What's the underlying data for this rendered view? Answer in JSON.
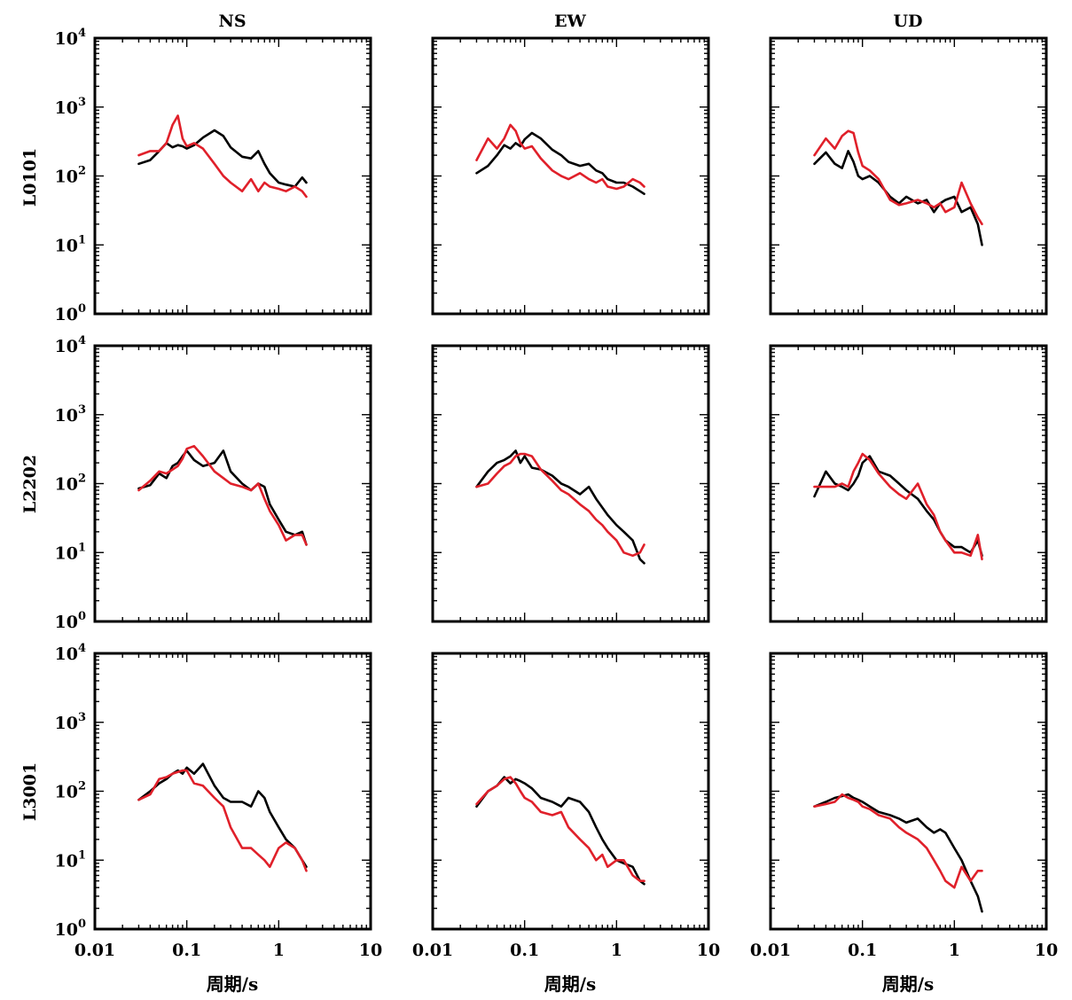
{
  "figure": {
    "column_titles": [
      "NS",
      "EW",
      "UD"
    ],
    "row_labels": [
      "L0101",
      "L2202",
      "L3001"
    ],
    "x_label": "周期/s",
    "x_ticks": [
      "0.01",
      "0.1",
      "1",
      "10"
    ],
    "y_ticks": [
      {
        "base": "10",
        "exp": "0"
      },
      {
        "base": "10",
        "exp": "1"
      },
      {
        "base": "10",
        "exp": "2"
      },
      {
        "base": "10",
        "exp": "3"
      },
      {
        "base": "10",
        "exp": "4"
      }
    ],
    "series_colors": {
      "black": "#000000",
      "red": "#e0202a"
    }
  },
  "chart_data": [
    {
      "type": "line",
      "row": "L0101",
      "column": "NS",
      "x_scale": "log",
      "y_scale": "log",
      "xlim": [
        0.01,
        10
      ],
      "ylim": [
        1,
        10000
      ],
      "x": [
        0.03,
        0.04,
        0.05,
        0.06,
        0.07,
        0.08,
        0.09,
        0.1,
        0.12,
        0.15,
        0.2,
        0.25,
        0.3,
        0.4,
        0.5,
        0.6,
        0.7,
        0.8,
        1.0,
        1.2,
        1.5,
        1.8,
        2.0
      ],
      "series": [
        {
          "color": "black",
          "values": [
            150,
            170,
            230,
            300,
            260,
            280,
            270,
            250,
            280,
            360,
            460,
            380,
            260,
            190,
            180,
            230,
            150,
            110,
            80,
            75,
            70,
            95,
            80
          ]
        },
        {
          "color": "red",
          "values": [
            200,
            230,
            230,
            300,
            550,
            750,
            350,
            270,
            300,
            250,
            150,
            100,
            80,
            60,
            90,
            60,
            80,
            70,
            65,
            60,
            70,
            60,
            50
          ]
        }
      ]
    },
    {
      "type": "line",
      "row": "L0101",
      "column": "EW",
      "x_scale": "log",
      "y_scale": "log",
      "xlim": [
        0.01,
        10
      ],
      "ylim": [
        1,
        10000
      ],
      "x": [
        0.03,
        0.04,
        0.05,
        0.06,
        0.07,
        0.08,
        0.09,
        0.1,
        0.12,
        0.15,
        0.2,
        0.25,
        0.3,
        0.4,
        0.5,
        0.6,
        0.7,
        0.8,
        1.0,
        1.2,
        1.5,
        1.8,
        2.0
      ],
      "series": [
        {
          "color": "black",
          "values": [
            110,
            140,
            200,
            280,
            250,
            300,
            270,
            340,
            420,
            350,
            240,
            200,
            160,
            140,
            150,
            120,
            110,
            90,
            80,
            80,
            70,
            60,
            55
          ]
        },
        {
          "color": "red",
          "values": [
            170,
            350,
            250,
            350,
            550,
            450,
            300,
            250,
            270,
            180,
            120,
            100,
            90,
            110,
            90,
            80,
            90,
            70,
            65,
            70,
            90,
            80,
            70
          ]
        }
      ]
    },
    {
      "type": "line",
      "row": "L0101",
      "column": "UD",
      "x_scale": "log",
      "y_scale": "log",
      "xlim": [
        0.01,
        10
      ],
      "ylim": [
        1,
        10000
      ],
      "x": [
        0.03,
        0.04,
        0.05,
        0.06,
        0.07,
        0.08,
        0.09,
        0.1,
        0.12,
        0.15,
        0.2,
        0.25,
        0.3,
        0.4,
        0.5,
        0.6,
        0.7,
        0.8,
        1.0,
        1.2,
        1.5,
        1.8,
        2.0
      ],
      "series": [
        {
          "color": "black",
          "values": [
            150,
            220,
            150,
            130,
            230,
            160,
            100,
            90,
            100,
            80,
            50,
            40,
            50,
            40,
            45,
            30,
            40,
            45,
            50,
            30,
            35,
            20,
            10
          ]
        },
        {
          "color": "red",
          "values": [
            200,
            350,
            250,
            380,
            450,
            420,
            220,
            140,
            120,
            90,
            45,
            38,
            40,
            45,
            40,
            35,
            40,
            30,
            35,
            80,
            40,
            25,
            20
          ]
        }
      ]
    },
    {
      "type": "line",
      "row": "L2202",
      "column": "NS",
      "x_scale": "log",
      "y_scale": "log",
      "xlim": [
        0.01,
        10
      ],
      "ylim": [
        1,
        10000
      ],
      "x": [
        0.03,
        0.04,
        0.05,
        0.06,
        0.07,
        0.08,
        0.09,
        0.1,
        0.12,
        0.15,
        0.2,
        0.25,
        0.3,
        0.4,
        0.5,
        0.6,
        0.7,
        0.8,
        1.0,
        1.2,
        1.5,
        1.8,
        2.0
      ],
      "series": [
        {
          "color": "black",
          "values": [
            85,
            95,
            140,
            120,
            180,
            200,
            250,
            300,
            220,
            180,
            200,
            300,
            150,
            100,
            80,
            100,
            90,
            50,
            30,
            20,
            18,
            20,
            13
          ]
        },
        {
          "color": "red",
          "values": [
            80,
            110,
            150,
            140,
            160,
            180,
            230,
            320,
            350,
            250,
            150,
            120,
            100,
            90,
            80,
            100,
            60,
            40,
            25,
            15,
            18,
            18,
            13
          ]
        }
      ]
    },
    {
      "type": "line",
      "row": "L2202",
      "column": "EW",
      "x_scale": "log",
      "y_scale": "log",
      "xlim": [
        0.01,
        10
      ],
      "ylim": [
        1,
        10000
      ],
      "x": [
        0.03,
        0.04,
        0.05,
        0.06,
        0.07,
        0.08,
        0.09,
        0.1,
        0.12,
        0.15,
        0.2,
        0.25,
        0.3,
        0.4,
        0.5,
        0.6,
        0.7,
        0.8,
        1.0,
        1.2,
        1.5,
        1.8,
        2.0
      ],
      "series": [
        {
          "color": "black",
          "values": [
            90,
            150,
            200,
            220,
            250,
            300,
            200,
            250,
            170,
            160,
            130,
            100,
            90,
            70,
            90,
            60,
            45,
            35,
            25,
            20,
            15,
            8,
            7
          ]
        },
        {
          "color": "red",
          "values": [
            90,
            100,
            140,
            180,
            200,
            250,
            270,
            270,
            250,
            160,
            110,
            80,
            70,
            50,
            40,
            30,
            25,
            20,
            15,
            10,
            9,
            10,
            13
          ]
        }
      ]
    },
    {
      "type": "line",
      "row": "L2202",
      "column": "UD",
      "x_scale": "log",
      "y_scale": "log",
      "xlim": [
        0.01,
        10
      ],
      "ylim": [
        1,
        10000
      ],
      "x": [
        0.03,
        0.04,
        0.05,
        0.06,
        0.07,
        0.08,
        0.09,
        0.1,
        0.12,
        0.15,
        0.2,
        0.25,
        0.3,
        0.4,
        0.5,
        0.6,
        0.7,
        0.8,
        1.0,
        1.2,
        1.5,
        1.8,
        2.0
      ],
      "series": [
        {
          "color": "black",
          "values": [
            65,
            150,
            100,
            90,
            80,
            100,
            130,
            200,
            250,
            150,
            130,
            100,
            80,
            60,
            40,
            30,
            20,
            15,
            12,
            12,
            10,
            15,
            9
          ]
        },
        {
          "color": "red",
          "values": [
            90,
            90,
            90,
            100,
            90,
            150,
            200,
            270,
            220,
            140,
            90,
            70,
            60,
            100,
            50,
            35,
            20,
            15,
            10,
            10,
            9,
            18,
            8
          ]
        }
      ]
    },
    {
      "type": "line",
      "row": "L3001",
      "column": "NS",
      "x_scale": "log",
      "y_scale": "log",
      "xlim": [
        0.01,
        10
      ],
      "ylim": [
        1,
        10000
      ],
      "x": [
        0.03,
        0.04,
        0.05,
        0.06,
        0.07,
        0.08,
        0.09,
        0.1,
        0.12,
        0.15,
        0.2,
        0.25,
        0.3,
        0.4,
        0.5,
        0.6,
        0.7,
        0.8,
        1.0,
        1.2,
        1.5,
        1.8,
        2.0
      ],
      "series": [
        {
          "color": "black",
          "values": [
            75,
            100,
            130,
            150,
            180,
            200,
            180,
            220,
            180,
            250,
            120,
            80,
            70,
            70,
            60,
            100,
            80,
            50,
            30,
            20,
            15,
            10,
            8
          ]
        },
        {
          "color": "red",
          "values": [
            75,
            90,
            150,
            160,
            180,
            190,
            200,
            200,
            130,
            120,
            80,
            60,
            30,
            15,
            15,
            12,
            10,
            8,
            15,
            18,
            15,
            10,
            7
          ]
        }
      ]
    },
    {
      "type": "line",
      "row": "L3001",
      "column": "EW",
      "x_scale": "log",
      "y_scale": "log",
      "xlim": [
        0.01,
        10
      ],
      "ylim": [
        1,
        10000
      ],
      "x": [
        0.03,
        0.04,
        0.05,
        0.06,
        0.07,
        0.08,
        0.09,
        0.1,
        0.12,
        0.15,
        0.2,
        0.25,
        0.3,
        0.4,
        0.5,
        0.6,
        0.7,
        0.8,
        1.0,
        1.2,
        1.5,
        1.8,
        2.0
      ],
      "series": [
        {
          "color": "black",
          "values": [
            60,
            100,
            120,
            160,
            130,
            150,
            140,
            130,
            110,
            80,
            70,
            60,
            80,
            70,
            50,
            30,
            20,
            15,
            10,
            9,
            8,
            5,
            4.5
          ]
        },
        {
          "color": "red",
          "values": [
            65,
            100,
            120,
            150,
            160,
            130,
            100,
            80,
            70,
            50,
            45,
            50,
            30,
            20,
            15,
            10,
            12,
            8,
            10,
            10,
            6,
            5,
            5
          ]
        }
      ]
    },
    {
      "type": "line",
      "row": "L3001",
      "column": "UD",
      "x_scale": "log",
      "y_scale": "log",
      "xlim": [
        0.01,
        10
      ],
      "ylim": [
        1,
        10000
      ],
      "x": [
        0.03,
        0.04,
        0.05,
        0.06,
        0.07,
        0.08,
        0.09,
        0.1,
        0.12,
        0.15,
        0.2,
        0.25,
        0.3,
        0.4,
        0.5,
        0.6,
        0.7,
        0.8,
        1.0,
        1.2,
        1.5,
        1.8,
        2.0
      ],
      "series": [
        {
          "color": "black",
          "values": [
            60,
            70,
            80,
            85,
            90,
            80,
            75,
            70,
            60,
            50,
            45,
            40,
            35,
            40,
            30,
            25,
            28,
            25,
            15,
            10,
            5,
            3,
            1.8
          ]
        },
        {
          "color": "red",
          "values": [
            60,
            65,
            70,
            90,
            80,
            75,
            70,
            60,
            55,
            45,
            40,
            30,
            25,
            20,
            15,
            10,
            7,
            5,
            4,
            8,
            5,
            7,
            7
          ]
        }
      ]
    }
  ]
}
